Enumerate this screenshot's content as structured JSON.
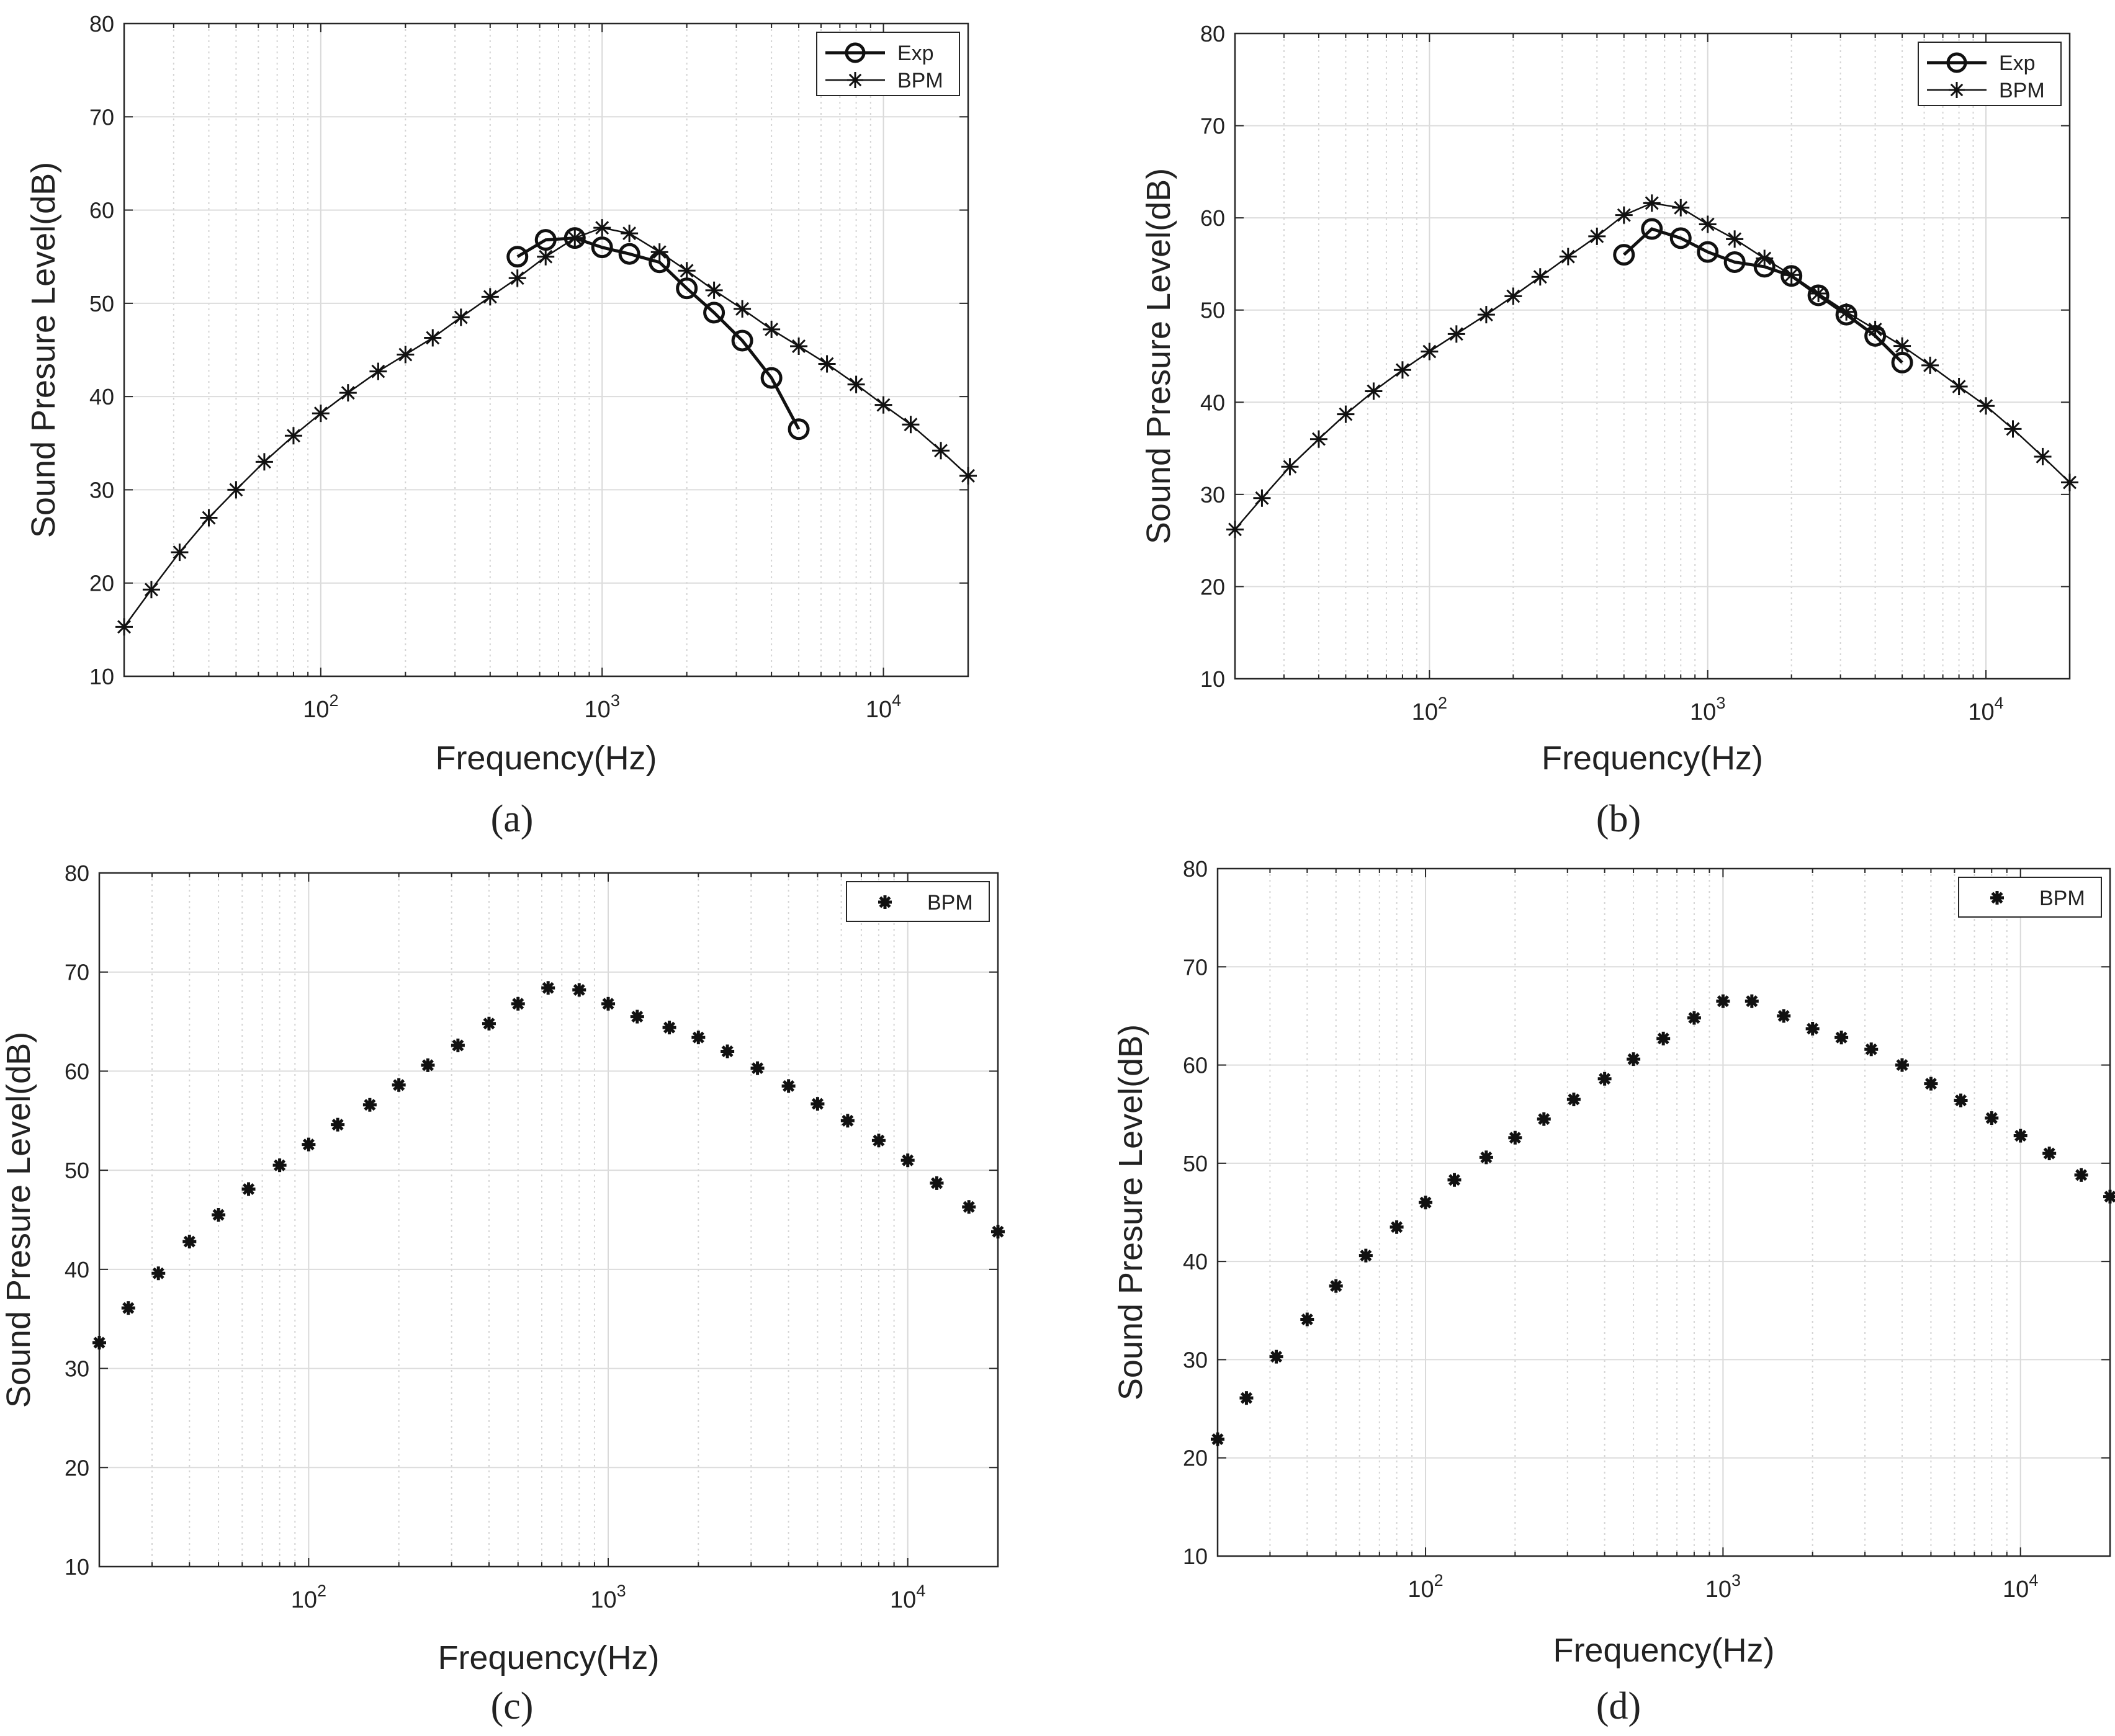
{
  "charts": [
    {
      "label": "(a)",
      "xlabel": "Frequency(Hz)",
      "ylabel": "Sound Presure Level(dB)",
      "legend_position": "top-right",
      "legend": [
        "Exp",
        "BPM"
      ]
    },
    {
      "label": "(b)",
      "xlabel": "Frequency(Hz)",
      "ylabel": "Sound Presure Level(dB)",
      "legend_position": "top-right",
      "legend": [
        "Exp",
        "BPM"
      ]
    },
    {
      "label": "(c)",
      "xlabel": "Frequency(Hz)",
      "ylabel": "Sound Presure Level(dB)",
      "legend_position": "top-right",
      "legend": [
        "BPM"
      ]
    },
    {
      "label": "(d)",
      "xlabel": "Frequency(Hz)",
      "ylabel": "Sound Presure Level(dB)",
      "legend_position": "top-right",
      "legend": [
        "BPM"
      ]
    }
  ],
  "chart_data": [
    {
      "type": "line",
      "title": "",
      "label": "(a)",
      "xlabel": "Frequency(Hz)",
      "ylabel": "Sound Presure Level(dB)",
      "xscale": "log",
      "xlim": [
        20,
        20000
      ],
      "ylim": [
        10,
        80
      ],
      "yticks": [
        10,
        20,
        30,
        40,
        50,
        60,
        70,
        80
      ],
      "xticks": [
        "10^2",
        "10^3",
        "10^4"
      ],
      "grid": true,
      "legend_position": "top-right",
      "series": [
        {
          "name": "Exp",
          "marker": "circle",
          "line": true,
          "x": [
            500,
            630,
            800,
            1000,
            1250,
            1600,
            2000,
            2500,
            3150,
            4000,
            5000
          ],
          "values": [
            55.0,
            56.8,
            57.0,
            56.0,
            55.3,
            54.4,
            51.6,
            49.0,
            46.0,
            42.0,
            36.5
          ]
        },
        {
          "name": "BPM",
          "marker": "asterisk",
          "line": true,
          "x": [
            20,
            25,
            31.5,
            40,
            50,
            63,
            80,
            100,
            125,
            160,
            200,
            250,
            315,
            400,
            500,
            630,
            800,
            1000,
            1250,
            1600,
            2000,
            2500,
            3150,
            4000,
            5000,
            6300,
            8000,
            10000,
            12500,
            16000,
            20000
          ],
          "values": [
            15.3,
            19.3,
            23.3,
            27.0,
            30.0,
            33.0,
            35.8,
            38.2,
            40.4,
            42.7,
            44.5,
            46.3,
            48.5,
            50.7,
            52.7,
            55.0,
            57.0,
            58.1,
            57.5,
            55.5,
            53.5,
            51.4,
            49.4,
            47.2,
            45.4,
            43.5,
            41.3,
            39.1,
            37.0,
            34.2,
            31.5
          ]
        }
      ]
    },
    {
      "type": "line",
      "title": "",
      "label": "(b)",
      "xlabel": "Frequency(Hz)",
      "ylabel": "Sound Presure Level(dB)",
      "xscale": "log",
      "xlim": [
        20,
        20000
      ],
      "ylim": [
        10,
        80
      ],
      "yticks": [
        10,
        20,
        30,
        40,
        50,
        60,
        70,
        80
      ],
      "xticks": [
        "10^2",
        "10^3",
        "10^4"
      ],
      "grid": true,
      "legend_position": "top-right",
      "series": [
        {
          "name": "Exp",
          "marker": "circle",
          "line": true,
          "x": [
            500,
            630,
            800,
            1000,
            1250,
            1600,
            2000,
            2500,
            3150,
            4000,
            5000
          ],
          "values": [
            56.0,
            58.8,
            57.8,
            56.3,
            55.2,
            54.7,
            53.7,
            51.6,
            49.5,
            47.2,
            44.3
          ]
        },
        {
          "name": "BPM",
          "marker": "asterisk",
          "line": true,
          "x": [
            20,
            25,
            31.5,
            40,
            50,
            63,
            80,
            100,
            125,
            160,
            200,
            250,
            315,
            400,
            500,
            630,
            800,
            1000,
            1250,
            1600,
            2000,
            2500,
            3150,
            4000,
            5000,
            6300,
            8000,
            10000,
            12500,
            16000,
            20000
          ],
          "values": [
            26.2,
            29.6,
            33.0,
            36.0,
            38.7,
            41.2,
            43.5,
            45.5,
            47.4,
            49.5,
            51.5,
            53.6,
            55.8,
            58.0,
            60.3,
            61.6,
            61.1,
            59.3,
            57.7,
            55.6,
            53.8,
            51.8,
            49.8,
            47.9,
            46.1,
            44.0,
            41.7,
            39.6,
            37.1,
            34.1,
            31.3
          ]
        }
      ]
    },
    {
      "type": "scatter",
      "title": "",
      "label": "(c)",
      "xlabel": "Frequency(Hz)",
      "ylabel": "Sound Presure Level(dB)",
      "xscale": "log",
      "xlim": [
        20,
        20000
      ],
      "ylim": [
        10,
        80
      ],
      "yticks": [
        10,
        20,
        30,
        40,
        50,
        60,
        70,
        80
      ],
      "xticks": [
        "10^2",
        "10^3",
        "10^4"
      ],
      "grid": true,
      "legend_position": "top-right",
      "series": [
        {
          "name": "BPM",
          "marker": "asterisk",
          "line": false,
          "x": [
            20,
            25,
            31.5,
            40,
            50,
            63,
            80,
            100,
            125,
            160,
            200,
            250,
            315,
            400,
            500,
            630,
            800,
            1000,
            1250,
            1600,
            2000,
            2500,
            3150,
            4000,
            5000,
            6300,
            8000,
            10000,
            12500,
            16000,
            20000
          ],
          "values": [
            32.6,
            36.1,
            39.6,
            42.8,
            45.5,
            48.1,
            50.5,
            52.6,
            54.6,
            56.6,
            58.6,
            60.6,
            62.6,
            64.8,
            66.8,
            68.4,
            68.2,
            66.8,
            65.5,
            64.4,
            63.4,
            62.0,
            60.3,
            58.5,
            56.7,
            55.0,
            53.0,
            51.0,
            48.7,
            46.3,
            43.8
          ]
        }
      ]
    },
    {
      "type": "scatter",
      "title": "",
      "label": "(d)",
      "xlabel": "Frequency(Hz)",
      "ylabel": "Sound Presure Level(dB)",
      "xscale": "log",
      "xlim": [
        20,
        20000
      ],
      "ylim": [
        10,
        80
      ],
      "yticks": [
        10,
        20,
        30,
        40,
        50,
        60,
        70,
        80
      ],
      "xticks": [
        "10^2",
        "10^3",
        "10^4"
      ],
      "grid": true,
      "legend_position": "top-right",
      "series": [
        {
          "name": "BPM",
          "marker": "asterisk",
          "line": false,
          "x": [
            20,
            25,
            31.5,
            40,
            50,
            63,
            80,
            100,
            125,
            160,
            200,
            250,
            315,
            400,
            500,
            630,
            800,
            1000,
            1250,
            1600,
            2000,
            2500,
            3150,
            4000,
            5000,
            6300,
            8000,
            10000,
            12500,
            16000,
            20000
          ],
          "values": [
            21.9,
            26.1,
            30.3,
            34.1,
            37.5,
            40.6,
            43.5,
            46.0,
            48.3,
            50.6,
            52.6,
            54.5,
            56.5,
            58.6,
            60.6,
            62.7,
            64.8,
            66.5,
            66.5,
            65.0,
            63.7,
            62.8,
            61.6,
            60.0,
            58.1,
            56.4,
            54.6,
            52.8,
            51.0,
            48.8,
            46.6
          ]
        }
      ]
    }
  ]
}
